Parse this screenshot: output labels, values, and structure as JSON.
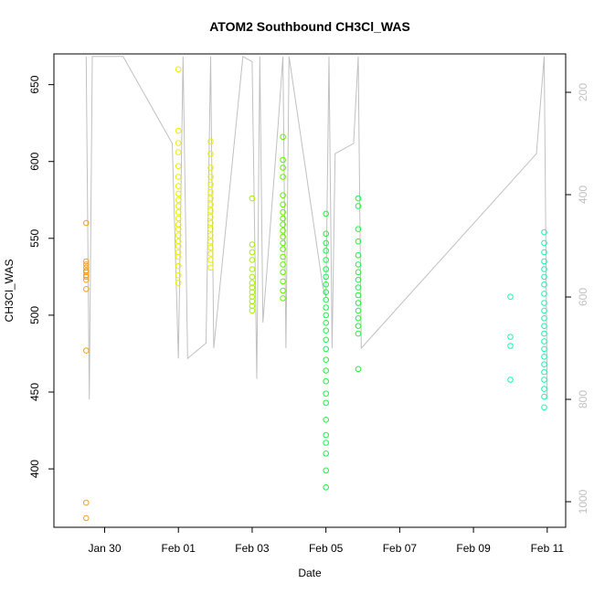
{
  "chart_data": {
    "type": "scatter",
    "title": "ATOM2 Southbound CH3Cl_WAS",
    "xlabel": "Date",
    "ylabel": "CH3Cl_WAS",
    "x_axis_type": "date",
    "xlim": [
      "2017-01-28T15:00",
      "2017-02-11T12:00"
    ],
    "ylim": [
      362,
      670
    ],
    "x_ticks": [
      {
        "date": "2017-01-30",
        "label": "Jan 30"
      },
      {
        "date": "2017-02-01",
        "label": "Feb 01"
      },
      {
        "date": "2017-02-03",
        "label": "Feb 03"
      },
      {
        "date": "2017-02-05",
        "label": "Feb 05"
      },
      {
        "date": "2017-02-07",
        "label": "Feb 07"
      },
      {
        "date": "2017-02-09",
        "label": "Feb 09"
      },
      {
        "date": "2017-02-11",
        "label": "Feb 11"
      }
    ],
    "y_ticks": [
      400,
      450,
      500,
      550,
      600,
      650
    ],
    "secondary_y": {
      "description": "altitude profile (gray line), inverted scale",
      "ticks": [
        200,
        400,
        600,
        800,
        1000
      ],
      "lim": [
        125,
        1050
      ],
      "inverted": true,
      "color": "#c0c0c0"
    },
    "grid": false,
    "legend": "none",
    "series": [
      {
        "color": "#f0a020",
        "points": [
          [
            "2017-01-29T12:00",
            560
          ],
          [
            "2017-01-29T12:00",
            535
          ],
          [
            "2017-01-29T12:00",
            533
          ],
          [
            "2017-01-29T12:00",
            531
          ],
          [
            "2017-01-29T12:00",
            529
          ],
          [
            "2017-01-29T12:00",
            528
          ],
          [
            "2017-01-29T12:00",
            526
          ],
          [
            "2017-01-29T12:00",
            525
          ],
          [
            "2017-01-29T12:00",
            523
          ],
          [
            "2017-01-29T12:00",
            517
          ],
          [
            "2017-01-29T12:00",
            477
          ],
          [
            "2017-01-29T12:00",
            378
          ],
          [
            "2017-01-29T12:00",
            368
          ]
        ]
      },
      {
        "color": "#e8f000",
        "points": [
          [
            "2017-02-01T00:00",
            660
          ],
          [
            "2017-02-01T00:00",
            620
          ],
          [
            "2017-02-01T00:00",
            612
          ],
          [
            "2017-02-01T00:00",
            606
          ],
          [
            "2017-02-01T00:00",
            597
          ],
          [
            "2017-02-01T00:00",
            590
          ],
          [
            "2017-02-01T00:00",
            584
          ],
          [
            "2017-02-01T00:00",
            579
          ],
          [
            "2017-02-01T00:00",
            575
          ],
          [
            "2017-02-01T00:00",
            571
          ],
          [
            "2017-02-01T00:00",
            567
          ],
          [
            "2017-02-01T00:00",
            563
          ],
          [
            "2017-02-01T00:00",
            559
          ],
          [
            "2017-02-01T00:00",
            556
          ],
          [
            "2017-02-01T00:00",
            552
          ],
          [
            "2017-02-01T00:00",
            548
          ],
          [
            "2017-02-01T00:00",
            545
          ],
          [
            "2017-02-01T00:00",
            541
          ],
          [
            "2017-02-01T00:00",
            538
          ],
          [
            "2017-02-01T00:00",
            532
          ],
          [
            "2017-02-01T00:00",
            526
          ],
          [
            "2017-02-01T00:00",
            521
          ],
          [
            "2017-02-01T21:00",
            613
          ],
          [
            "2017-02-01T21:00",
            605
          ],
          [
            "2017-02-01T21:00",
            596
          ],
          [
            "2017-02-01T21:00",
            590
          ],
          [
            "2017-02-01T21:00",
            585
          ],
          [
            "2017-02-01T21:00",
            580
          ],
          [
            "2017-02-01T21:00",
            576
          ],
          [
            "2017-02-01T21:00",
            572
          ],
          [
            "2017-02-01T21:00",
            568
          ],
          [
            "2017-02-01T21:00",
            564
          ],
          [
            "2017-02-01T21:00",
            560
          ],
          [
            "2017-02-01T21:00",
            556
          ],
          [
            "2017-02-01T21:00",
            552
          ],
          [
            "2017-02-01T21:00",
            548
          ],
          [
            "2017-02-01T21:00",
            544
          ],
          [
            "2017-02-01T21:00",
            540
          ],
          [
            "2017-02-01T21:00",
            536
          ],
          [
            "2017-02-01T21:00",
            531
          ]
        ]
      },
      {
        "color": "#a8f000",
        "points": [
          [
            "2017-02-03T00:00",
            576
          ],
          [
            "2017-02-03T00:00",
            546
          ],
          [
            "2017-02-03T00:00",
            541
          ],
          [
            "2017-02-03T00:00",
            536
          ],
          [
            "2017-02-03T00:00",
            530
          ],
          [
            "2017-02-03T00:00",
            525
          ],
          [
            "2017-02-03T00:00",
            521
          ],
          [
            "2017-02-03T00:00",
            518
          ],
          [
            "2017-02-03T00:00",
            515
          ],
          [
            "2017-02-03T00:00",
            512
          ],
          [
            "2017-02-03T00:00",
            509
          ],
          [
            "2017-02-03T00:00",
            506
          ],
          [
            "2017-02-03T00:00",
            503
          ]
        ]
      },
      {
        "color": "#60f000",
        "points": [
          [
            "2017-02-03T20:00",
            616
          ],
          [
            "2017-02-03T20:00",
            601
          ],
          [
            "2017-02-03T20:00",
            596
          ],
          [
            "2017-02-03T20:00",
            590
          ],
          [
            "2017-02-03T20:00",
            578
          ],
          [
            "2017-02-03T20:00",
            572
          ],
          [
            "2017-02-03T20:00",
            567
          ],
          [
            "2017-02-03T20:00",
            563
          ],
          [
            "2017-02-03T20:00",
            559
          ],
          [
            "2017-02-03T20:00",
            555
          ],
          [
            "2017-02-03T20:00",
            551
          ],
          [
            "2017-02-03T20:00",
            547
          ],
          [
            "2017-02-03T20:00",
            543
          ],
          [
            "2017-02-03T20:00",
            538
          ],
          [
            "2017-02-03T20:00",
            533
          ],
          [
            "2017-02-03T20:00",
            528
          ],
          [
            "2017-02-03T20:00",
            522
          ],
          [
            "2017-02-03T20:00",
            516
          ],
          [
            "2017-02-03T20:00",
            511
          ]
        ]
      },
      {
        "color": "#20f040",
        "points": [
          [
            "2017-02-05T00:00",
            566
          ],
          [
            "2017-02-05T00:00",
            553
          ],
          [
            "2017-02-05T00:00",
            547
          ],
          [
            "2017-02-05T00:00",
            542
          ],
          [
            "2017-02-05T00:00",
            536
          ],
          [
            "2017-02-05T00:00",
            530
          ],
          [
            "2017-02-05T00:00",
            525
          ],
          [
            "2017-02-05T00:00",
            520
          ],
          [
            "2017-02-05T00:00",
            515
          ],
          [
            "2017-02-05T00:00",
            510
          ],
          [
            "2017-02-05T00:00",
            505
          ],
          [
            "2017-02-05T00:00",
            500
          ],
          [
            "2017-02-05T00:00",
            495
          ],
          [
            "2017-02-05T00:00",
            490
          ],
          [
            "2017-02-05T00:00",
            484
          ],
          [
            "2017-02-05T00:00",
            478
          ],
          [
            "2017-02-05T00:00",
            471
          ],
          [
            "2017-02-05T00:00",
            464
          ],
          [
            "2017-02-05T00:00",
            457
          ],
          [
            "2017-02-05T00:00",
            449
          ],
          [
            "2017-02-05T00:00",
            443
          ],
          [
            "2017-02-05T00:00",
            432
          ],
          [
            "2017-02-05T00:00",
            422
          ],
          [
            "2017-02-05T00:00",
            417
          ],
          [
            "2017-02-05T00:00",
            410
          ],
          [
            "2017-02-05T00:00",
            399
          ],
          [
            "2017-02-05T00:00",
            388
          ],
          [
            "2017-02-05T21:00",
            576
          ],
          [
            "2017-02-05T21:00",
            571
          ],
          [
            "2017-02-05T21:00",
            556
          ],
          [
            "2017-02-05T21:00",
            548
          ],
          [
            "2017-02-05T21:00",
            539
          ],
          [
            "2017-02-05T21:00",
            533
          ],
          [
            "2017-02-05T21:00",
            528
          ],
          [
            "2017-02-05T21:00",
            523
          ],
          [
            "2017-02-05T21:00",
            518
          ],
          [
            "2017-02-05T21:00",
            513
          ],
          [
            "2017-02-05T21:00",
            508
          ],
          [
            "2017-02-05T21:00",
            503
          ],
          [
            "2017-02-05T21:00",
            498
          ],
          [
            "2017-02-05T21:00",
            493
          ],
          [
            "2017-02-05T21:00",
            488
          ],
          [
            "2017-02-05T21:00",
            465
          ]
        ]
      },
      {
        "color": "#20f0b0",
        "points": [
          [
            "2017-02-10T00:00",
            512
          ],
          [
            "2017-02-10T00:00",
            486
          ],
          [
            "2017-02-10T00:00",
            480
          ],
          [
            "2017-02-10T00:00",
            458
          ],
          [
            "2017-02-10T22:00",
            554
          ],
          [
            "2017-02-10T22:00",
            547
          ],
          [
            "2017-02-10T22:00",
            541
          ],
          [
            "2017-02-10T22:00",
            535
          ],
          [
            "2017-02-10T22:00",
            530
          ],
          [
            "2017-02-10T22:00",
            525
          ],
          [
            "2017-02-10T22:00",
            520
          ],
          [
            "2017-02-10T22:00",
            514
          ],
          [
            "2017-02-10T22:00",
            508
          ],
          [
            "2017-02-10T22:00",
            503
          ],
          [
            "2017-02-10T22:00",
            498
          ],
          [
            "2017-02-10T22:00",
            493
          ],
          [
            "2017-02-10T22:00",
            488
          ],
          [
            "2017-02-10T22:00",
            483
          ],
          [
            "2017-02-10T22:00",
            478
          ],
          [
            "2017-02-10T22:00",
            473
          ],
          [
            "2017-02-10T22:00",
            468
          ],
          [
            "2017-02-10T22:00",
            463
          ],
          [
            "2017-02-10T22:00",
            458
          ],
          [
            "2017-02-10T22:00",
            452
          ],
          [
            "2017-02-10T22:00",
            447
          ],
          [
            "2017-02-10T22:00",
            440
          ]
        ]
      }
    ],
    "altitude_line": {
      "color": "#c0c0c0",
      "points": [
        [
          "2017-01-29T12:00",
          130
        ],
        [
          "2017-01-29T14:00",
          800
        ],
        [
          "2017-01-29T16:00",
          130
        ],
        [
          "2017-01-30T12:00",
          130
        ],
        [
          "2017-01-31T20:00",
          300
        ],
        [
          "2017-02-01T00:00",
          720
        ],
        [
          "2017-02-01T03:00",
          130
        ],
        [
          "2017-02-01T06:00",
          720
        ],
        [
          "2017-02-01T18:00",
          690
        ],
        [
          "2017-02-01T21:00",
          130
        ],
        [
          "2017-02-01T23:00",
          700
        ],
        [
          "2017-02-02T18:00",
          130
        ],
        [
          "2017-02-03T00:00",
          140
        ],
        [
          "2017-02-03T03:00",
          760
        ],
        [
          "2017-02-03T05:00",
          130
        ],
        [
          "2017-02-03T07:00",
          650
        ],
        [
          "2017-02-03T17:00",
          260
        ],
        [
          "2017-02-03T20:00",
          130
        ],
        [
          "2017-02-03T22:00",
          700
        ],
        [
          "2017-02-04T00:00",
          130
        ],
        [
          "2017-02-04T22:00",
          580
        ],
        [
          "2017-02-05T00:00",
          600
        ],
        [
          "2017-02-05T02:00",
          130
        ],
        [
          "2017-02-05T04:00",
          700
        ],
        [
          "2017-02-05T06:00",
          320
        ],
        [
          "2017-02-05T18:00",
          300
        ],
        [
          "2017-02-05T21:00",
          130
        ],
        [
          "2017-02-05T23:00",
          700
        ],
        [
          "2017-02-10T17:00",
          320
        ],
        [
          "2017-02-10T22:00",
          130
        ],
        [
          "2017-02-11T00:00",
          800
        ]
      ]
    }
  }
}
